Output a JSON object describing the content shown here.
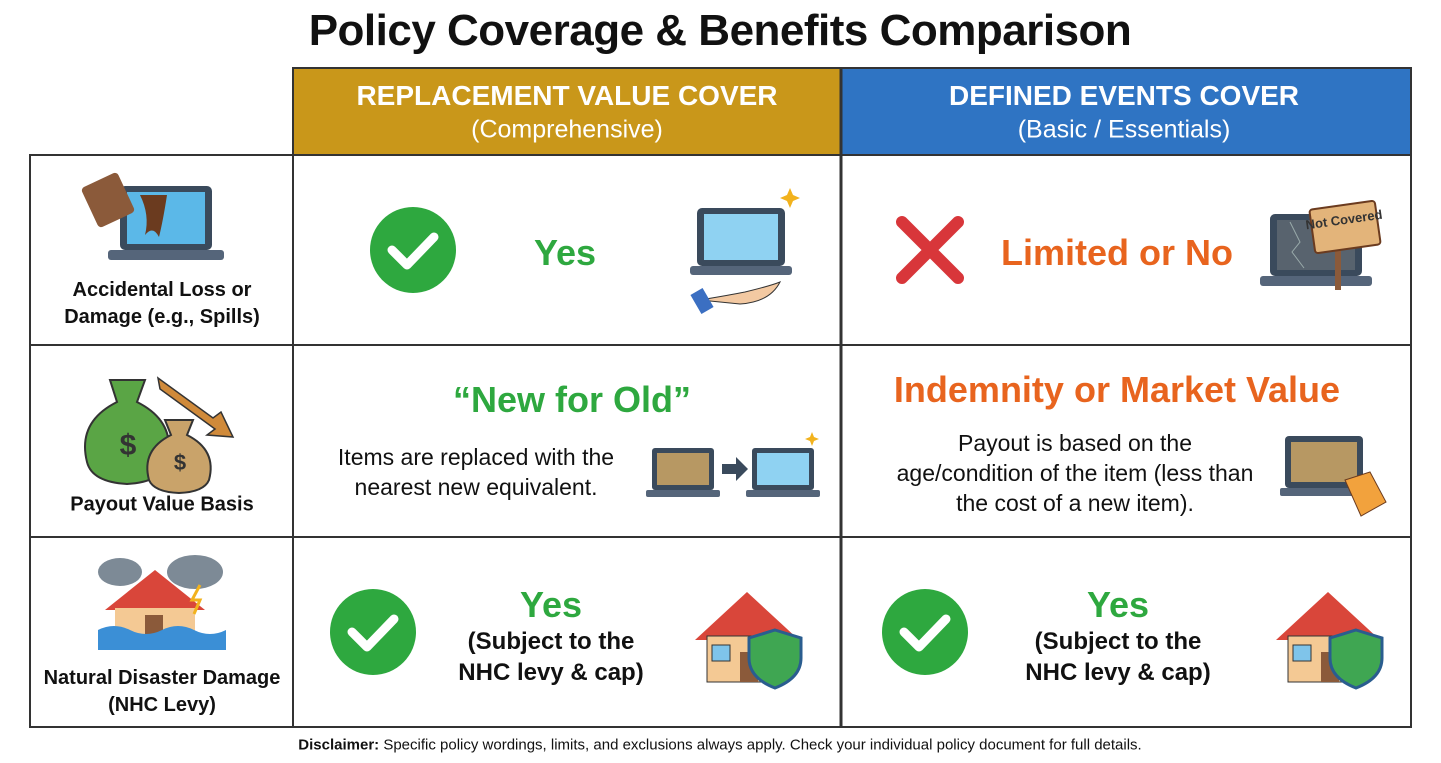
{
  "title": "Policy Coverage & Benefits Comparison",
  "columns": [
    {
      "title": "REPLACEMENT VALUE COVER",
      "subtitle": "(Comprehensive)"
    },
    {
      "title": "DEFINED EVENTS COVER",
      "subtitle": "(Basic / Essentials)"
    }
  ],
  "rows": [
    {
      "label": "Accidental Loss or Damage (e.g., Spills)",
      "cells": [
        {
          "headline": "Yes"
        },
        {
          "headline": "Limited or No",
          "badge": "Not Covered"
        }
      ]
    },
    {
      "label": "Payout Value Basis",
      "cells": [
        {
          "headline": "“New for Old”",
          "text": "Items are replaced with the nearest new equivalent."
        },
        {
          "headline": "Indemnity or Market Value",
          "text": "Payout is based on the age/condition of the item (less than the cost of a new item)."
        }
      ]
    },
    {
      "label": "Natural Disaster Damage (NHC Levy)",
      "cells": [
        {
          "headline": "Yes",
          "text": "(Subject to the NHC levy & cap)"
        },
        {
          "headline": "Yes",
          "text": "(Subject to the NHC levy & cap)"
        }
      ]
    }
  ],
  "disclaimer": {
    "label": "Disclaimer:",
    "text": "Specific policy wordings, limits, and exclusions always apply. Check your individual policy document for full details."
  }
}
